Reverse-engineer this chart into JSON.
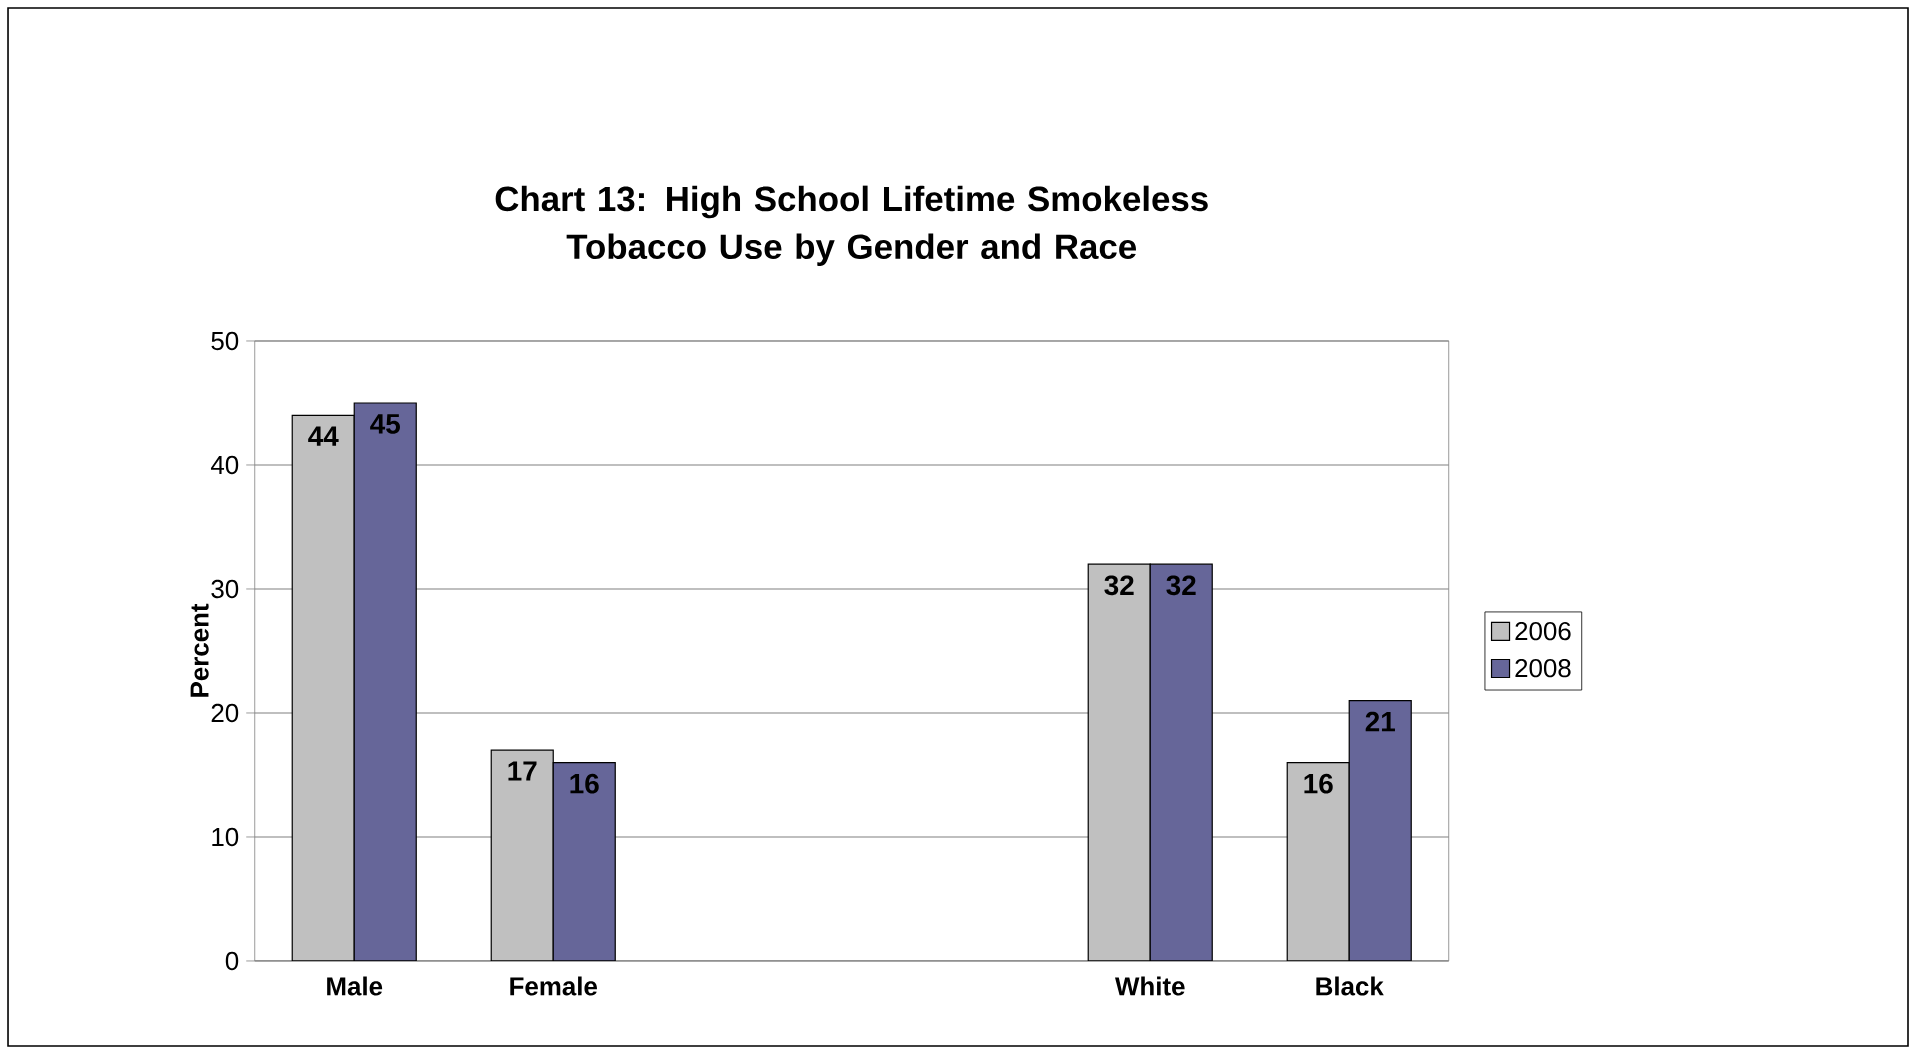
{
  "chart_data": {
    "type": "bar",
    "title": "Chart 13: High School Lifetime Smokeless Tobacco Use by Gender and Race",
    "ylabel": "Percent",
    "categories": [
      "Male",
      "Female",
      null,
      null,
      "White",
      "Black"
    ],
    "series": [
      {
        "name": "2006",
        "color": "#c0c0c0",
        "values": [
          44,
          17,
          null,
          null,
          32,
          16
        ]
      },
      {
        "name": "2008",
        "color": "#666699",
        "values": [
          45,
          16,
          null,
          null,
          32,
          21
        ]
      }
    ],
    "ylim": [
      0,
      50
    ],
    "yticks": [
      0,
      10,
      20,
      30,
      40,
      50
    ],
    "grid": "y",
    "legend": "right",
    "data_labels": true
  }
}
